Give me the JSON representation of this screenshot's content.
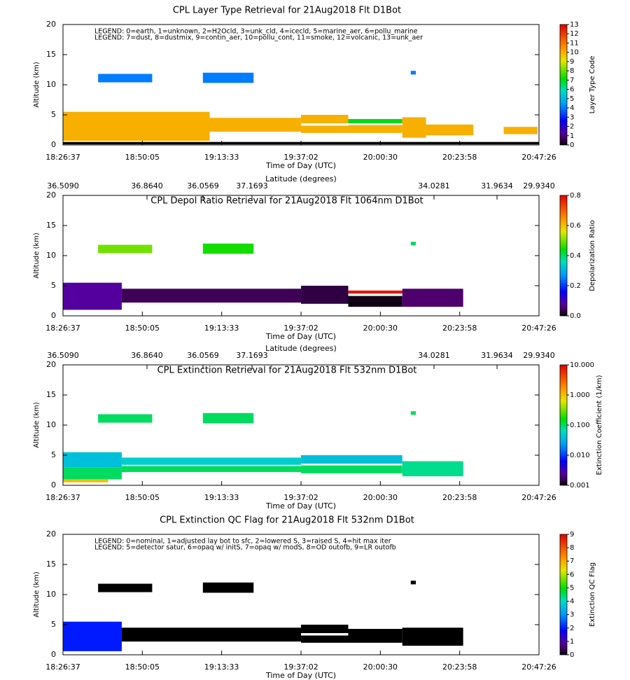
{
  "chart_data": [
    {
      "type": "curtain",
      "title": "CPL Layer Type Retrieval for 21Aug2018 Flt D1Bot",
      "legend_text": [
        "LEGEND: 0=earth, 1=unknown, 2=H2Ocld, 3=unk_cld, 4=icecld, 5=marine_aer, 6=pollu_marine",
        "LEGEND: 7=dust, 8=dustmix, 9=contin_aer, 10=pollu_cont, 11=smoke, 12=volcanic, 13=unk_aer"
      ],
      "xlabel": "Time of Day (UTC)",
      "ylabel": "Altitude (km)",
      "xlim": [
        "18:26:37",
        "20:47:26"
      ],
      "xticks": [
        "18:26:37",
        "18:50:05",
        "19:13:33",
        "19:37:02",
        "20:00:30",
        "20:23:58",
        "20:47:26"
      ],
      "ylim": [
        0,
        20
      ],
      "yticks": [
        0,
        5,
        10,
        15,
        20
      ],
      "colorbar_label": "Layer Type Code",
      "clim": [
        0,
        13
      ],
      "cticks": [
        0,
        1,
        2,
        3,
        4,
        5,
        6,
        7,
        8,
        9,
        10,
        11,
        12,
        13
      ],
      "segments": [
        {
          "x": [
            "18:26:37",
            "20:47:26"
          ],
          "y": [
            0.1,
            0.5
          ],
          "value": 0
        },
        {
          "x": [
            "18:26:37",
            "19:10:00"
          ],
          "y": [
            0.7,
            5.5
          ],
          "value": 10
        },
        {
          "x": [
            "19:10:00",
            "19:37:02"
          ],
          "y": [
            2.2,
            4.5
          ],
          "value": 10
        },
        {
          "x": [
            "19:37:02",
            "19:51:00"
          ],
          "y": [
            2.0,
            3.2
          ],
          "value": 10
        },
        {
          "x": [
            "19:37:02",
            "19:51:00"
          ],
          "y": [
            3.6,
            5.0
          ],
          "value": 10
        },
        {
          "x": [
            "19:51:00",
            "20:07:00"
          ],
          "y": [
            3.6,
            4.3
          ],
          "value": 7
        },
        {
          "x": [
            "19:51:00",
            "20:07:00"
          ],
          "y": [
            2.0,
            3.3
          ],
          "value": 10
        },
        {
          "x": [
            "20:07:00",
            "20:14:00"
          ],
          "y": [
            1.2,
            4.6
          ],
          "value": 10
        },
        {
          "x": [
            "20:14:00",
            "20:28:00"
          ],
          "y": [
            1.6,
            3.4
          ],
          "value": 10
        },
        {
          "x": [
            "20:37:00",
            "20:47:00"
          ],
          "y": [
            1.8,
            3.0
          ],
          "value": 10
        },
        {
          "x": [
            "18:37:00",
            "18:53:00"
          ],
          "y": [
            10.4,
            11.8
          ],
          "value": 4
        },
        {
          "x": [
            "19:08:00",
            "19:23:00"
          ],
          "y": [
            10.3,
            12.0
          ],
          "value": 4
        },
        {
          "x": [
            "20:09:30",
            "20:11:00"
          ],
          "y": [
            11.7,
            12.3
          ],
          "value": 4
        }
      ]
    },
    {
      "type": "curtain",
      "title": "CPL Depol Ratio Retrieval for 21Aug2018 Flt 1064nm D1Bot",
      "xlabel": "Time of Day (UTC)",
      "ylabel": "Altitude (km)",
      "lat_label": "Latitude (degrees)",
      "lat_ticks": [
        {
          "x": "18:26:37",
          "label": "36.5090"
        },
        {
          "x": "18:51:28",
          "label": "36.8640"
        },
        {
          "x": "19:08:02",
          "label": "36.0569"
        },
        {
          "x": "19:22:32",
          "label": "37.1693"
        },
        {
          "x": "20:16:22",
          "label": "34.0281"
        },
        {
          "x": "20:35:01",
          "label": "31.9634"
        },
        {
          "x": "20:47:26",
          "label": "29.9340"
        }
      ],
      "xlim": [
        "18:26:37",
        "20:47:26"
      ],
      "xticks": [
        "18:26:37",
        "18:50:05",
        "19:13:33",
        "19:37:02",
        "20:00:30",
        "20:23:58",
        "20:47:26"
      ],
      "ylim": [
        0,
        20
      ],
      "yticks": [
        0,
        5,
        10,
        15,
        20
      ],
      "colorbar_label": "Depolarization Ratio",
      "clim": [
        0,
        0.8
      ],
      "cticks": [
        {
          "value": 0,
          "label": "0.0"
        },
        {
          "value": 0.2,
          "label": "0.2"
        },
        {
          "value": 0.4,
          "label": "0.4"
        },
        {
          "value": 0.6,
          "label": "0.6"
        },
        {
          "value": 0.8,
          "label": "0.8"
        }
      ],
      "segments": [
        {
          "x": [
            "18:26:37",
            "18:44:00"
          ],
          "y": [
            1.0,
            5.5
          ],
          "value": 0.08
        },
        {
          "x": [
            "18:44:00",
            "19:37:02"
          ],
          "y": [
            2.2,
            4.5
          ],
          "value": 0.04
        },
        {
          "x": [
            "19:37:02",
            "19:51:00"
          ],
          "y": [
            2.0,
            5.0
          ],
          "value": 0.03
        },
        {
          "x": [
            "19:51:00",
            "20:07:00"
          ],
          "y": [
            3.7,
            4.2
          ],
          "value": 0.78
        },
        {
          "x": [
            "19:51:00",
            "20:07:00"
          ],
          "y": [
            1.5,
            3.3
          ],
          "value": 0.01
        },
        {
          "x": [
            "20:07:00",
            "20:25:00"
          ],
          "y": [
            1.5,
            4.5
          ],
          "value": 0.05
        },
        {
          "x": [
            "18:37:00",
            "18:53:00"
          ],
          "y": [
            10.4,
            11.8
          ],
          "value": 0.5
        },
        {
          "x": [
            "19:08:00",
            "19:23:00"
          ],
          "y": [
            10.3,
            12.0
          ],
          "value": 0.45
        },
        {
          "x": [
            "20:09:30",
            "20:11:00"
          ],
          "y": [
            11.7,
            12.3
          ],
          "value": 0.4
        }
      ]
    },
    {
      "type": "curtain",
      "title": "CPL Extinction Retrieval for 21Aug2018 Flt 532nm D1Bot",
      "xlabel": "Time of Day (UTC)",
      "ylabel": "Altitude (km)",
      "lat_label": "Latitude (degrees)",
      "lat_ticks": [
        {
          "x": "18:26:37",
          "label": "36.5090"
        },
        {
          "x": "18:51:28",
          "label": "36.8640"
        },
        {
          "x": "19:08:02",
          "label": "36.0569"
        },
        {
          "x": "19:22:32",
          "label": "37.1693"
        },
        {
          "x": "20:16:22",
          "label": "34.0281"
        },
        {
          "x": "20:35:01",
          "label": "31.9634"
        },
        {
          "x": "20:47:26",
          "label": "29.9340"
        }
      ],
      "xlim": [
        "18:26:37",
        "20:47:26"
      ],
      "xticks": [
        "18:26:37",
        "18:50:05",
        "19:13:33",
        "19:37:02",
        "20:00:30",
        "20:23:58",
        "20:47:26"
      ],
      "ylim": [
        0,
        20
      ],
      "yticks": [
        0,
        5,
        10,
        15,
        20
      ],
      "colorbar_label": "Extinction Coefficient (1/km)",
      "clim": [
        0.001,
        10
      ],
      "clog": true,
      "cticks": [
        {
          "value": 0.001,
          "label": "0.001"
        },
        {
          "value": 0.01,
          "label": "0.010"
        },
        {
          "value": 0.1,
          "label": "0.100"
        },
        {
          "value": 1,
          "label": "1.000"
        },
        {
          "value": 10,
          "label": "10.000"
        }
      ],
      "segments": [
        {
          "x": [
            "18:26:37",
            "18:44:00"
          ],
          "y": [
            3.0,
            5.5
          ],
          "value": 0.04
        },
        {
          "x": [
            "18:26:37",
            "18:44:00"
          ],
          "y": [
            1.0,
            3.0
          ],
          "value": 0.1
        },
        {
          "x": [
            "18:26:37",
            "18:40:00"
          ],
          "y": [
            0.5,
            1.0
          ],
          "value": 1.0
        },
        {
          "x": [
            "18:44:00",
            "19:37:02"
          ],
          "y": [
            3.4,
            4.6
          ],
          "value": 0.05
        },
        {
          "x": [
            "18:44:00",
            "19:37:02"
          ],
          "y": [
            2.2,
            3.2
          ],
          "value": 0.1
        },
        {
          "x": [
            "19:37:02",
            "20:07:00"
          ],
          "y": [
            3.6,
            5.0
          ],
          "value": 0.04
        },
        {
          "x": [
            "19:37:02",
            "20:07:00"
          ],
          "y": [
            2.0,
            3.3
          ],
          "value": 0.1
        },
        {
          "x": [
            "20:07:00",
            "20:25:00"
          ],
          "y": [
            1.5,
            4.0
          ],
          "value": 0.08
        },
        {
          "x": [
            "18:37:00",
            "18:53:00"
          ],
          "y": [
            10.4,
            11.8
          ],
          "value": 0.1
        },
        {
          "x": [
            "19:08:00",
            "19:23:00"
          ],
          "y": [
            10.3,
            12.0
          ],
          "value": 0.1
        },
        {
          "x": [
            "20:09:30",
            "20:11:00"
          ],
          "y": [
            11.7,
            12.3
          ],
          "value": 0.1
        }
      ]
    },
    {
      "type": "curtain",
      "title": "CPL Extinction QC Flag for 21Aug2018 Flt 532nm D1Bot",
      "legend_text": [
        "LEGEND: 0=nominal, 1=adjusted lay bot to sfc, 2=lowered S, 3=raised S, 4=hit max iter",
        "LEGEND: 5=detector satur, 6=opaq w/ initS, 7=opaq w/ modS, 8=OD outofb, 9=LR outofb"
      ],
      "xlabel": "Time of Day (UTC)",
      "ylabel": "Altitude (km)",
      "xlim": [
        "18:26:37",
        "20:47:26"
      ],
      "xticks": [
        "18:26:37",
        "18:50:05",
        "19:13:33",
        "19:37:02",
        "20:00:30",
        "20:23:58",
        "20:47:26"
      ],
      "ylim": [
        0,
        20
      ],
      "yticks": [
        0,
        5,
        10,
        15,
        20
      ],
      "colorbar_label": "Extinction QC Flag",
      "clim": [
        0,
        9
      ],
      "cticks": [
        0,
        1,
        2,
        3,
        4,
        5,
        6,
        7,
        8,
        9
      ],
      "segments": [
        {
          "x": [
            "18:26:37",
            "18:44:00"
          ],
          "y": [
            0.6,
            5.5
          ],
          "value": 2
        },
        {
          "x": [
            "18:44:00",
            "19:37:02"
          ],
          "y": [
            2.2,
            4.5
          ],
          "value": 0
        },
        {
          "x": [
            "19:37:02",
            "19:51:00"
          ],
          "y": [
            2.0,
            3.2
          ],
          "value": 0
        },
        {
          "x": [
            "19:37:02",
            "19:51:00"
          ],
          "y": [
            3.6,
            5.0
          ],
          "value": 0
        },
        {
          "x": [
            "19:51:00",
            "20:07:00"
          ],
          "y": [
            2.0,
            4.3
          ],
          "value": 0
        },
        {
          "x": [
            "20:07:00",
            "20:25:00"
          ],
          "y": [
            1.5,
            4.5
          ],
          "value": 0
        },
        {
          "x": [
            "18:37:00",
            "18:53:00"
          ],
          "y": [
            10.4,
            11.8
          ],
          "value": 0
        },
        {
          "x": [
            "19:08:00",
            "19:23:00"
          ],
          "y": [
            10.3,
            12.0
          ],
          "value": 0
        },
        {
          "x": [
            "20:09:30",
            "20:11:00"
          ],
          "y": [
            11.7,
            12.3
          ],
          "value": 0
        }
      ]
    }
  ]
}
